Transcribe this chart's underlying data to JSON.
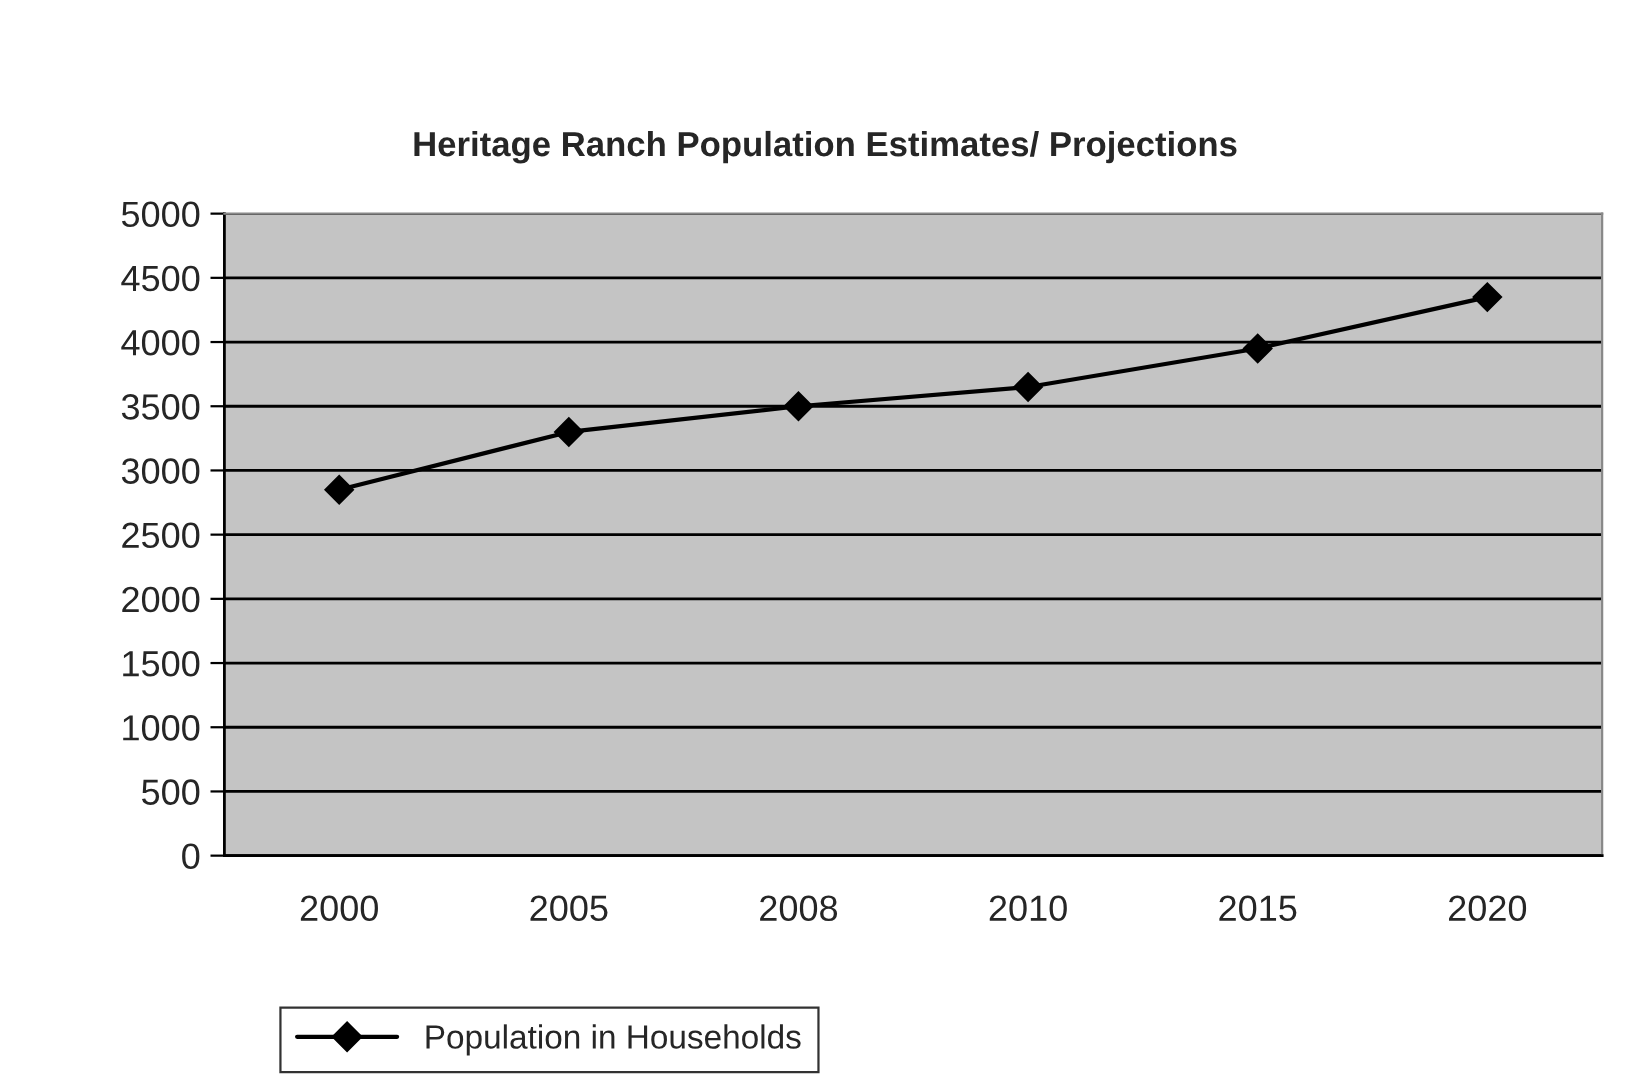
{
  "chart_data": {
    "type": "line",
    "title": "Heritage Ranch Population Estimates/ Projections",
    "categories": [
      "2000",
      "2005",
      "2008",
      "2010",
      "2015",
      "2020"
    ],
    "series": [
      {
        "name": "Population in Households",
        "color": "#000000",
        "values": [
          2850,
          3300,
          3500,
          3650,
          3950,
          4350
        ]
      }
    ],
    "ylim": [
      0,
      5000
    ],
    "yticks": [
      0,
      500,
      1000,
      1500,
      2000,
      2500,
      3000,
      3500,
      4000,
      4500,
      5000
    ],
    "grid": "y",
    "legend": "bottom",
    "marker": "diamond",
    "line_style": "solid"
  }
}
